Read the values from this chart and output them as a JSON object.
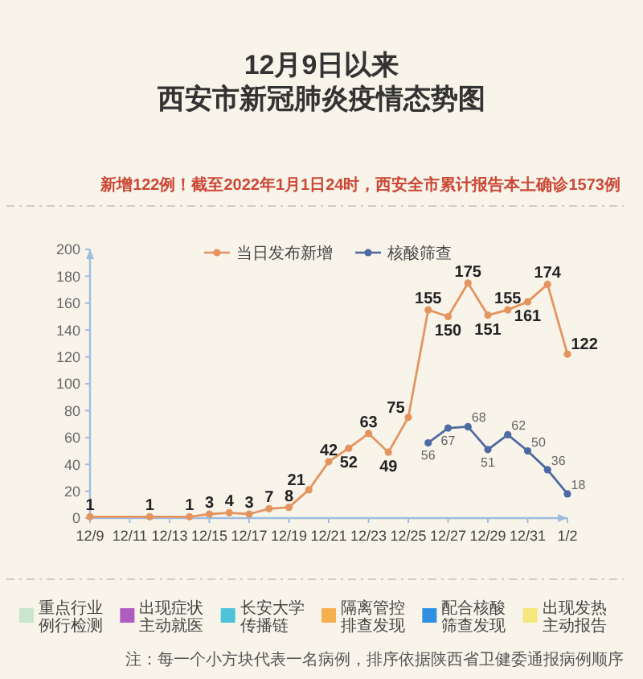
{
  "chart_data": [
    {
      "type": "line",
      "title": "12月9日以来",
      "subtitle": "西安市新冠肺炎疫情态势图",
      "annotations": [
        "新增122例！截至2022年1月1日24时，西安全市累计报告本土确诊1573例"
      ],
      "series": [
        {
          "name": "当日发布新增",
          "color": "#e4955f",
          "x": [
            "2021-12-09",
            "2021-12-12",
            "2021-12-14",
            "2021-12-15",
            "2021-12-16",
            "2021-12-17",
            "2021-12-18",
            "2021-12-19",
            "2021-12-20",
            "2021-12-21",
            "2021-12-22",
            "2021-12-23",
            "2021-12-24",
            "2021-12-25",
            "2021-12-26",
            "2021-12-27",
            "2021-12-28",
            "2021-12-29",
            "2021-12-30",
            "2021-12-31",
            "2022-01-01",
            "2022-01-02"
          ],
          "values": [
            1,
            1,
            1,
            3,
            4,
            3,
            7,
            8,
            21,
            42,
            52,
            63,
            49,
            75,
            155,
            150,
            175,
            151,
            155,
            161,
            174,
            122
          ]
        },
        {
          "name": "核酸筛查",
          "color": "#4e6aa3",
          "x": [
            "2021-12-26",
            "2021-12-27",
            "2021-12-28",
            "2021-12-29",
            "2021-12-30",
            "2021-12-31",
            "2022-01-01",
            "2022-01-02"
          ],
          "values": [
            56,
            67,
            68,
            51,
            62,
            50,
            36,
            18
          ]
        }
      ],
      "xlim": [
        "2021-12-09",
        "2022-01-02"
      ],
      "xticks": [
        {
          "value": "2021-12-09",
          "label": "12/9"
        },
        {
          "value": "2021-12-11",
          "label": "12/11"
        },
        {
          "value": "2021-12-13",
          "label": "12/13"
        },
        {
          "value": "2021-12-15",
          "label": "12/15"
        },
        {
          "value": "2021-12-17",
          "label": "12/17"
        },
        {
          "value": "2021-12-19",
          "label": "12/19"
        },
        {
          "value": "2021-12-21",
          "label": "12/21"
        },
        {
          "value": "2021-12-23",
          "label": "12/23"
        },
        {
          "value": "2021-12-25",
          "label": "12/25"
        },
        {
          "value": "2021-12-27",
          "label": "12/27"
        },
        {
          "value": "2021-12-29",
          "label": "12/29"
        },
        {
          "value": "2021-12-31",
          "label": "12/31"
        },
        {
          "value": "2022-01-02",
          "label": "1/2"
        }
      ],
      "ylim": [
        0,
        200
      ],
      "yticks": [
        0,
        20,
        40,
        60,
        80,
        100,
        120,
        140,
        160,
        180,
        200
      ],
      "legend": "top",
      "marker": "circle",
      "data_labels": true
    },
    {
      "type": "other",
      "categories": [
        "重点行业例行检测",
        "出现症状主动就医",
        "长安大学传播链",
        "隔离管控排查发现",
        "配合核酸筛查发现",
        "出现发热主动报告"
      ],
      "colors": [
        "#c9e5cc",
        "#b05cc0",
        "#4fc3d9",
        "#f4b04f",
        "#2f8fe0",
        "#f5e77c"
      ],
      "annotations": [
        "注：每一个小方块代表一名病例，排序依据陕西省卫健委通报病例顺序"
      ]
    }
  ]
}
